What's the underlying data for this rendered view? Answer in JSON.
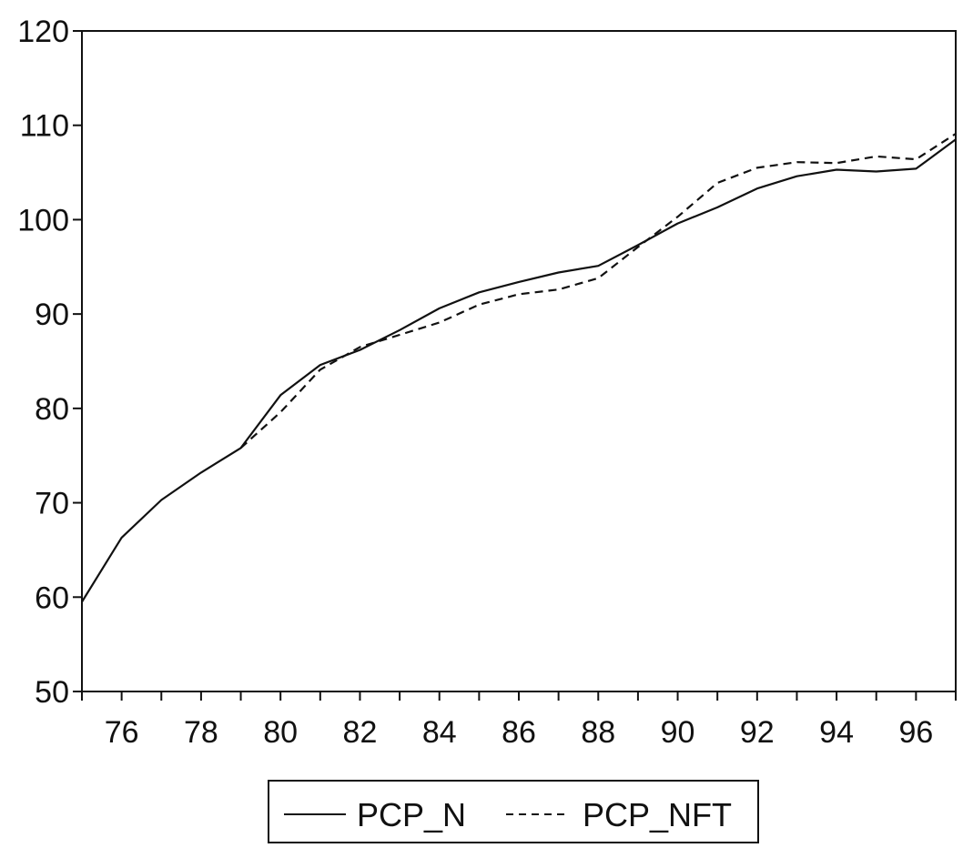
{
  "chart_data": {
    "type": "line",
    "title": "",
    "xlabel": "",
    "ylabel": "",
    "xlim": [
      1975,
      1997
    ],
    "ylim": [
      50,
      120
    ],
    "yticks": [
      50,
      60,
      70,
      80,
      90,
      100,
      110,
      120
    ],
    "xtick_labels": [
      "76",
      "78",
      "80",
      "82",
      "84",
      "86",
      "88",
      "90",
      "92",
      "94",
      "96"
    ],
    "grid": false,
    "legend_position": "bottom-center",
    "series": [
      {
        "name": "PCP_N",
        "style": "solid",
        "color": "#111111",
        "points": [
          [
            1975,
            59.5
          ],
          [
            1976,
            66.3
          ],
          [
            1977,
            70.3
          ],
          [
            1978,
            73.2
          ],
          [
            1979,
            75.8
          ],
          [
            1980,
            81.4
          ],
          [
            1981,
            84.6
          ],
          [
            1982,
            86.2
          ],
          [
            1983,
            88.3
          ],
          [
            1984,
            90.6
          ],
          [
            1985,
            92.3
          ],
          [
            1986,
            93.4
          ],
          [
            1987,
            94.4
          ],
          [
            1988,
            95.1
          ],
          [
            1989,
            97.3
          ],
          [
            1990,
            99.6
          ],
          [
            1991,
            101.3
          ],
          [
            1992,
            103.3
          ],
          [
            1993,
            104.6
          ],
          [
            1994,
            105.3
          ],
          [
            1995,
            105.1
          ],
          [
            1996,
            105.4
          ],
          [
            1997,
            108.5
          ]
        ]
      },
      {
        "name": "PCP_NFT",
        "style": "dashed",
        "color": "#111111",
        "points": [
          [
            1979,
            75.8
          ],
          [
            1980,
            79.6
          ],
          [
            1981,
            84.1
          ],
          [
            1982,
            86.5
          ],
          [
            1983,
            87.8
          ],
          [
            1984,
            89.1
          ],
          [
            1985,
            91.0
          ],
          [
            1986,
            92.1
          ],
          [
            1987,
            92.6
          ],
          [
            1988,
            93.8
          ],
          [
            1989,
            97.1
          ],
          [
            1990,
            100.3
          ],
          [
            1991,
            103.9
          ],
          [
            1992,
            105.5
          ],
          [
            1993,
            106.1
          ],
          [
            1994,
            106.0
          ],
          [
            1995,
            106.7
          ],
          [
            1996,
            106.4
          ],
          [
            1997,
            109.1
          ]
        ]
      }
    ]
  }
}
